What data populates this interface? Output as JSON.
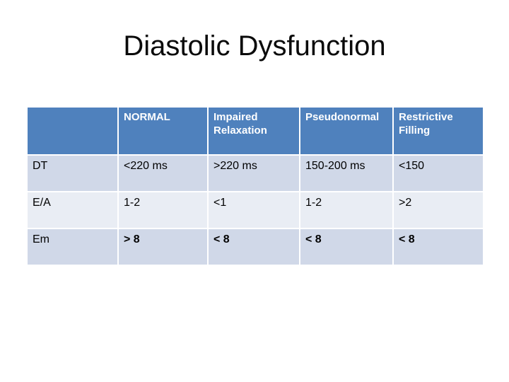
{
  "slide": {
    "title": "Diastolic Dysfunction"
  },
  "table": {
    "columns": [
      "",
      "NORMAL",
      "Impaired Relaxation",
      "Pseudonormal",
      "Restrictive Filling"
    ],
    "rows": [
      [
        "DT",
        "<220 ms",
        ">220 ms",
        "150-200 ms",
        "<150"
      ],
      [
        "E/A",
        "1-2",
        "<1",
        "1-2",
        ">2"
      ],
      [
        "Em",
        "> 8",
        "< 8",
        "< 8",
        "< 8"
      ]
    ],
    "colors": {
      "header_bg": "#4F81BD",
      "header_text": "#FFFFFF",
      "band_dark": "#D0D8E8",
      "band_light": "#E9EDF4",
      "body_text": "#000000",
      "border": "#FFFFFF"
    }
  }
}
